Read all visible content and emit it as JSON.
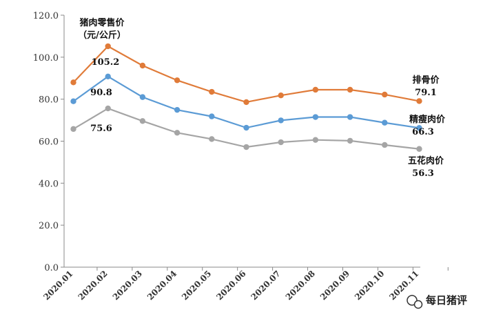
{
  "chart_data": {
    "type": "line",
    "title_line1": "猪肉零售价",
    "title_line2": "（元/公斤）",
    "categories": [
      "2020.01",
      "2020.02",
      "2020.03",
      "2020.04",
      "2020.05",
      "2020.06",
      "2020.07",
      "2020.08",
      "2020.09",
      "2020.10",
      "2020.11"
    ],
    "y_ticks": [
      "0.0",
      "20.0",
      "40.0",
      "60.0",
      "80.0",
      "100.0",
      "120.0"
    ],
    "ylim": [
      0,
      120
    ],
    "grid": false,
    "series": [
      {
        "name": "排骨价",
        "color": "#e07b39",
        "values": [
          88.0,
          105.2,
          96.0,
          89.0,
          83.5,
          78.6,
          81.8,
          84.5,
          84.5,
          82.2,
          79.1
        ],
        "end_label": "79.1",
        "peak_label": "105.2"
      },
      {
        "name": "精瘦肉价",
        "color": "#5b9bd5",
        "values": [
          79.0,
          90.8,
          81.0,
          74.9,
          71.8,
          66.4,
          69.9,
          71.5,
          71.5,
          68.8,
          66.3
        ],
        "end_label": "66.3",
        "peak_label": "90.8"
      },
      {
        "name": "五花肉价",
        "color": "#a5a5a5",
        "values": [
          65.8,
          75.6,
          69.6,
          64.0,
          61.0,
          57.2,
          59.5,
          60.6,
          60.2,
          58.2,
          56.3
        ],
        "end_label": "56.3",
        "peak_label": "75.6"
      }
    ]
  },
  "watermark": {
    "text": "每日猪评",
    "icon": "wechat-icon"
  }
}
